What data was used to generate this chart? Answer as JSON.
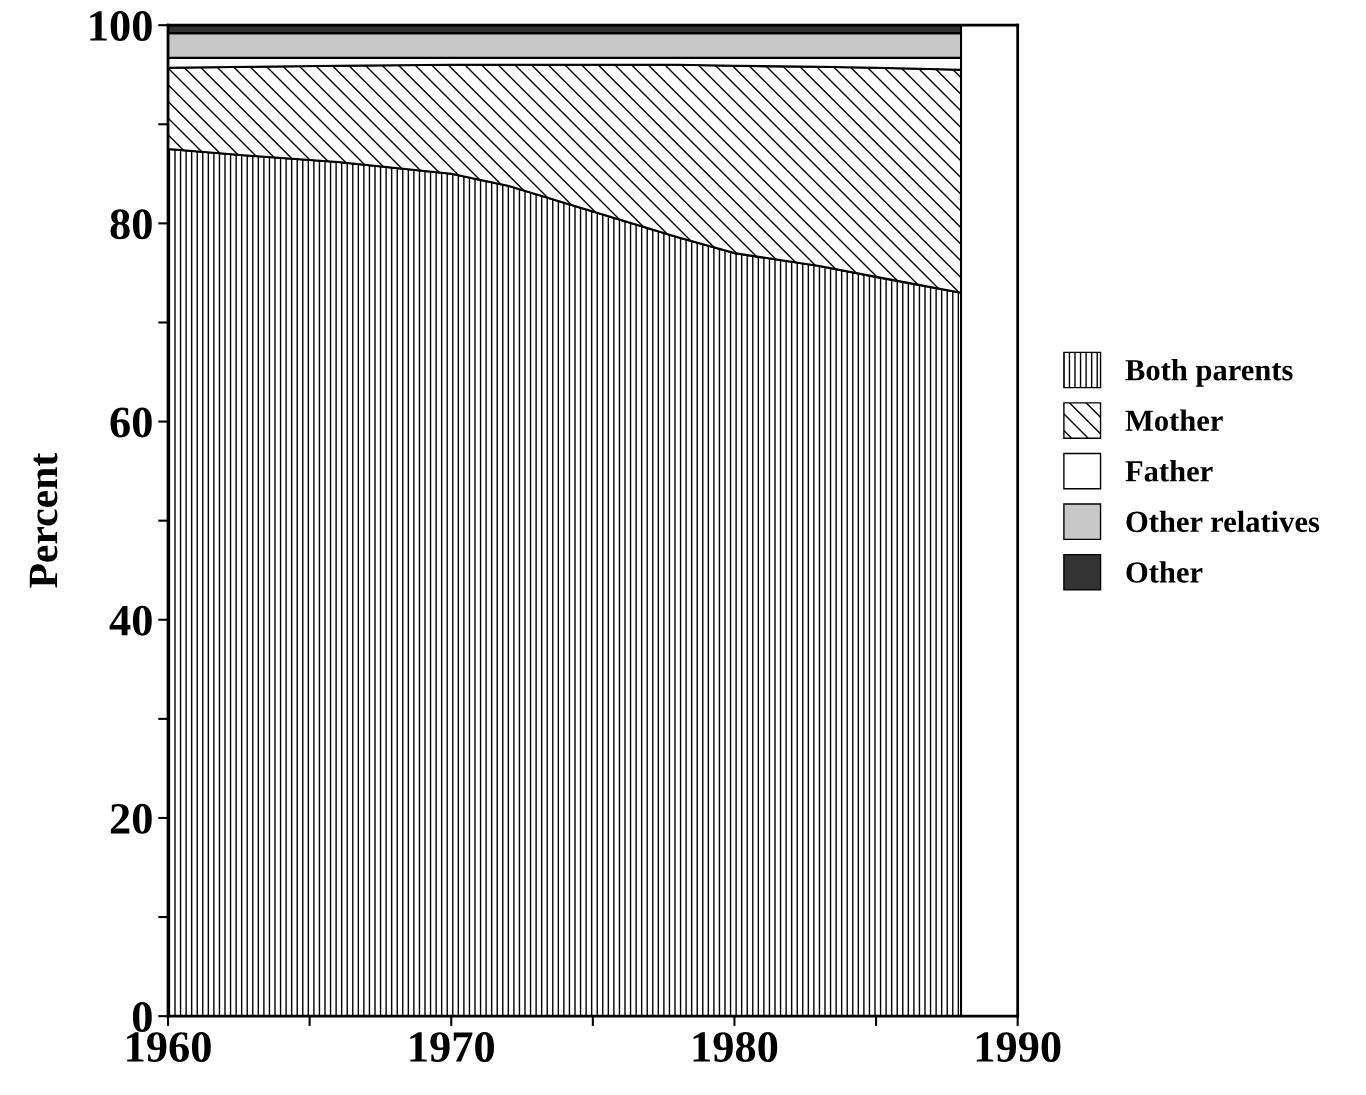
{
  "chart_data": {
    "type": "area",
    "stacked": true,
    "ylabel": "Percent",
    "x": [
      1960,
      1963,
      1966,
      1970,
      1972,
      1975,
      1978,
      1980,
      1983,
      1985,
      1988
    ],
    "series": [
      {
        "name": "Both parents",
        "color": "#000000",
        "values": [
          87.5,
          86.8,
          86.2,
          85.0,
          83.8,
          81.2,
          78.6,
          77.0,
          75.7,
          74.6,
          73.0
        ]
      },
      {
        "name": "Mother",
        "color": "#000000",
        "values": [
          8.2,
          9.0,
          9.7,
          11.0,
          12.2,
          14.8,
          17.4,
          18.9,
          20.1,
          21.1,
          22.5
        ]
      },
      {
        "name": "Father",
        "color": "#ffffff",
        "values": [
          1.0,
          0.9,
          0.8,
          0.7,
          0.7,
          0.7,
          0.7,
          0.8,
          0.9,
          1.0,
          1.2
        ]
      },
      {
        "name": "Other relatives",
        "color": "#c8c8c8",
        "values": [
          2.5,
          2.5,
          2.5,
          2.5,
          2.5,
          2.5,
          2.5,
          2.5,
          2.5,
          2.5,
          2.5
        ]
      },
      {
        "name": "Other",
        "color": "#333333",
        "values": [
          0.8,
          0.8,
          0.8,
          0.8,
          0.8,
          0.8,
          0.8,
          0.8,
          0.8,
          0.8,
          0.8
        ]
      }
    ],
    "xlim": [
      1960,
      1990
    ],
    "xticks": [
      1960,
      {
        "value": 1965,
        "label": null
      },
      1970,
      {
        "value": 1975,
        "label": null
      },
      1980,
      {
        "value": 1985,
        "label": null
      },
      1990
    ],
    "ylim": [
      0,
      100
    ],
    "yticks": [
      0,
      {
        "value": 10,
        "label": null
      },
      20,
      {
        "value": 30,
        "label": null
      },
      40,
      {
        "value": 50,
        "label": null
      },
      60,
      {
        "value": 70,
        "label": null
      },
      80,
      {
        "value": 90,
        "label": null
      },
      100
    ],
    "grid": false,
    "legend": "right"
  }
}
